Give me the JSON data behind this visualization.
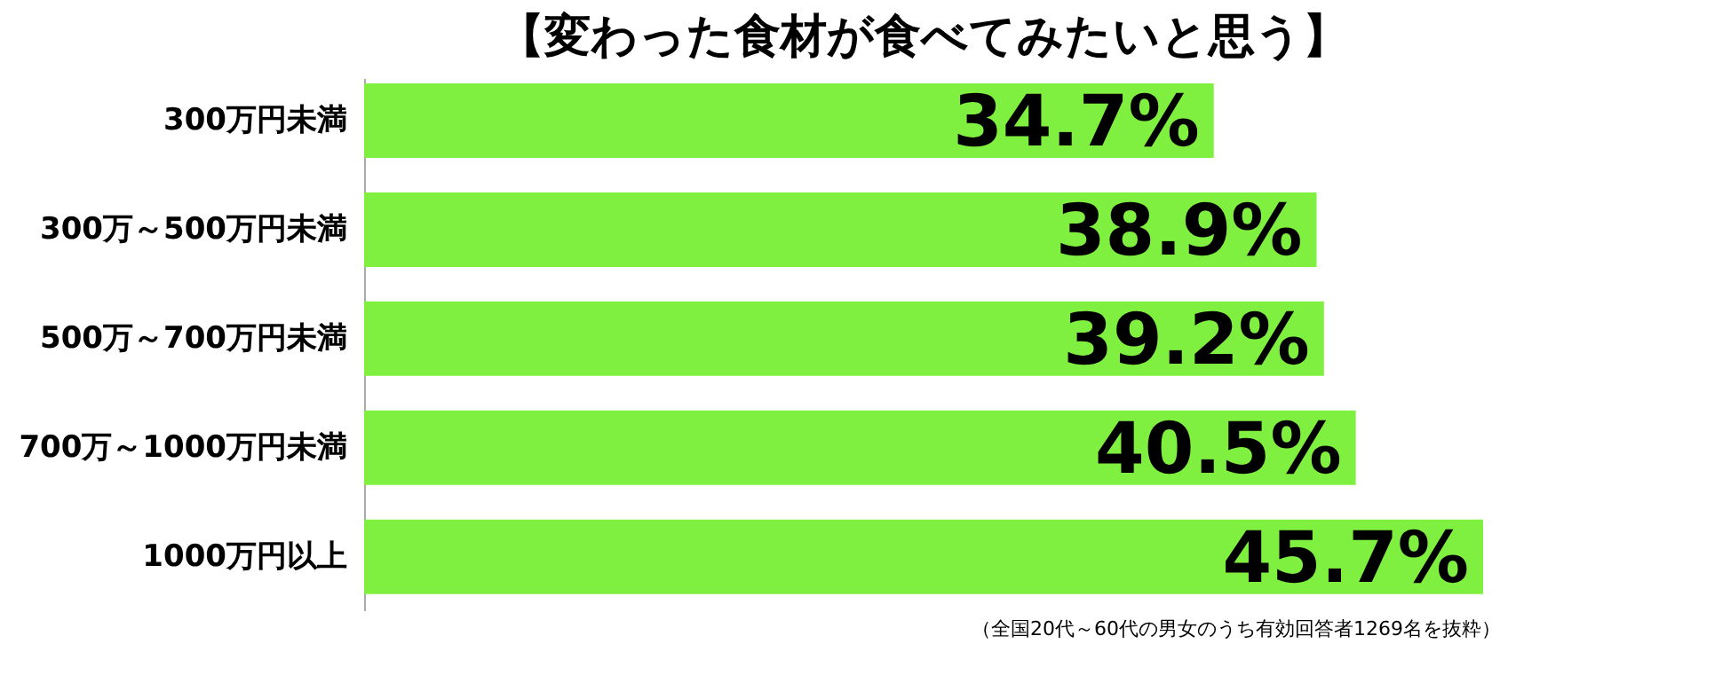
{
  "chart_data": {
    "type": "bar",
    "orientation": "horizontal",
    "title": "【変わった食材が食べてみたいと思う】",
    "categories": [
      "300万円未満",
      "300万～500万円未満",
      "500万～700万円未満",
      "700万～1000万円未満",
      "1000万円以上"
    ],
    "values": [
      34.7,
      38.9,
      39.2,
      40.5,
      45.7
    ],
    "value_labels": [
      "34.7%",
      "38.9%",
      "39.2%",
      "40.5%",
      "45.7%"
    ],
    "color": "#80f040",
    "tick_labels": "y",
    "grid": false,
    "annotations": [
      "（全国20代～60代の男女のうち有効回答者1269名を抜粋）"
    ]
  }
}
